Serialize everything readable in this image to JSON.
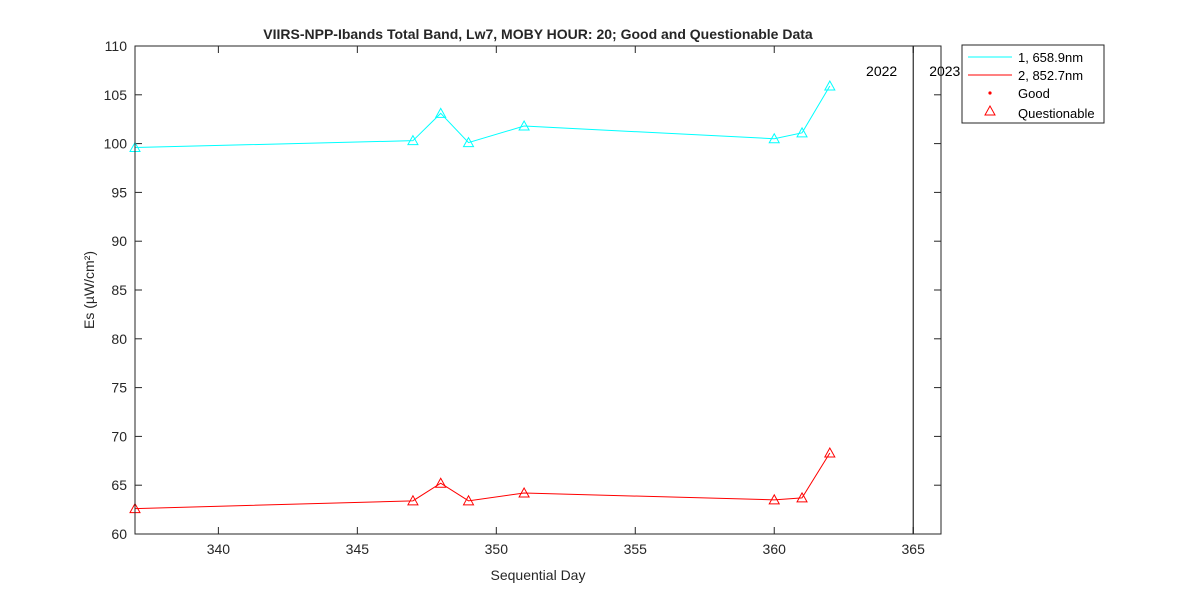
{
  "chart_data": {
    "type": "line",
    "title": "VIIRS-NPP-Ibands Total Band,  Lw7, MOBY HOUR: 20;  Good and Questionable Data",
    "xlabel": "Sequential Day",
    "ylabel": "Es (µW/cm²)",
    "xlim": [
      337,
      366
    ],
    "ylim": [
      60,
      110
    ],
    "xticks": [
      340,
      345,
      350,
      355,
      360,
      365
    ],
    "yticks": [
      60,
      65,
      70,
      75,
      80,
      85,
      90,
      95,
      100,
      105,
      110
    ],
    "grid": false,
    "legend_placement": "outside-top-right",
    "x": [
      337,
      347,
      348,
      349,
      351,
      360,
      361,
      362
    ],
    "series": [
      {
        "name": "1, 658.9nm",
        "color": "#00ffff",
        "values": [
          99.6,
          100.3,
          103.1,
          100.1,
          101.8,
          100.5,
          101.1,
          105.9
        ],
        "quality": [
          "questionable",
          "questionable",
          "questionable",
          "questionable",
          "questionable",
          "questionable",
          "questionable",
          "questionable"
        ]
      },
      {
        "name": "2, 852.7nm",
        "color": "#ff0000",
        "values": [
          62.6,
          63.4,
          65.2,
          63.4,
          64.2,
          63.5,
          63.7,
          68.3
        ],
        "quality": [
          "questionable",
          "questionable",
          "questionable",
          "questionable",
          "questionable",
          "questionable",
          "questionable",
          "questionable"
        ]
      }
    ],
    "markers": [
      {
        "name": "Good",
        "symbol": "dot",
        "color": "#ff0000"
      },
      {
        "name": "Questionable",
        "symbol": "triangle",
        "color": "#ff0000"
      }
    ],
    "year_divider": {
      "x": 365,
      "left_label": "2022",
      "right_label": "2023",
      "color": "#000000"
    }
  }
}
